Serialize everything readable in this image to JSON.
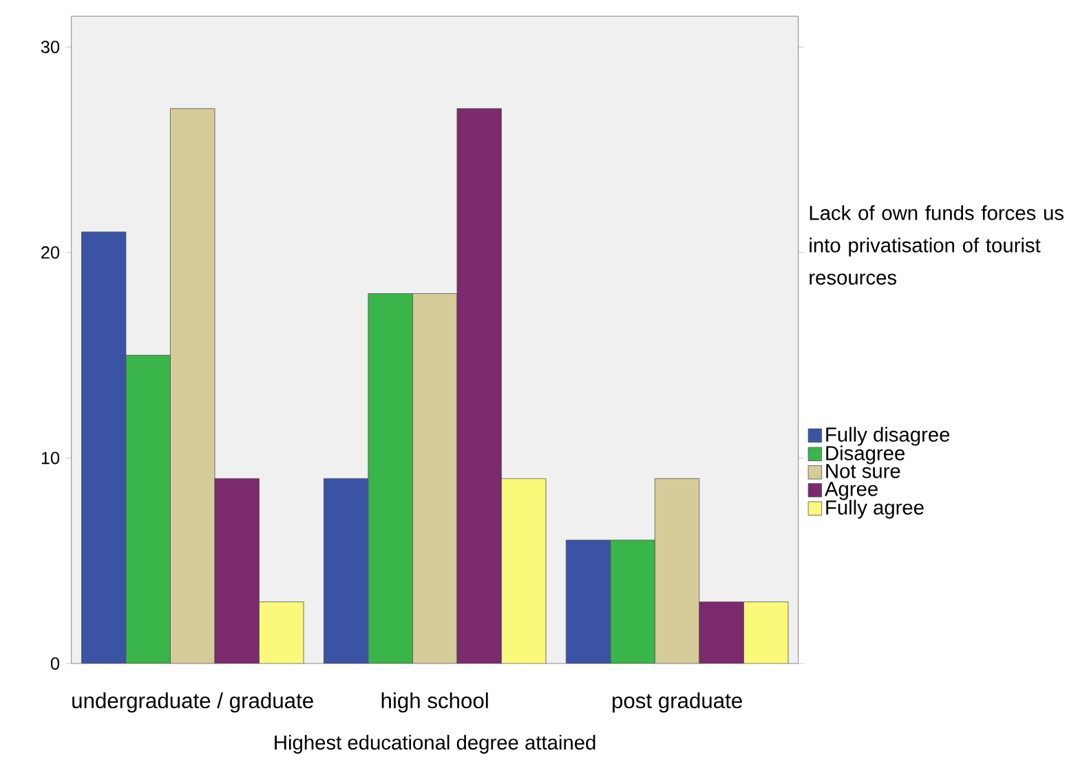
{
  "chart_data": {
    "type": "bar",
    "xlabel": "Highest educational degree attained",
    "legend_title": "Lack of own funds forces us into privatisation of tourist resources",
    "categories": [
      "undergraduate / graduate",
      "high school",
      "post graduate"
    ],
    "series": [
      {
        "name": "Fully disagree",
        "color": "#3a53a4",
        "values": [
          21,
          9,
          6
        ]
      },
      {
        "name": "Disagree",
        "color": "#3ab54a",
        "values": [
          15,
          18,
          6
        ]
      },
      {
        "name": "Not sure",
        "color": "#d6cc9a",
        "values": [
          27,
          18,
          9
        ]
      },
      {
        "name": "Agree",
        "color": "#7b2a6e",
        "values": [
          9,
          27,
          3
        ]
      },
      {
        "name": "Fully agree",
        "color": "#fbf97a",
        "values": [
          3,
          9,
          3
        ]
      }
    ],
    "ylim": [
      0,
      31.5
    ],
    "yticks": [
      0,
      10,
      20,
      30
    ],
    "legend": "right"
  }
}
